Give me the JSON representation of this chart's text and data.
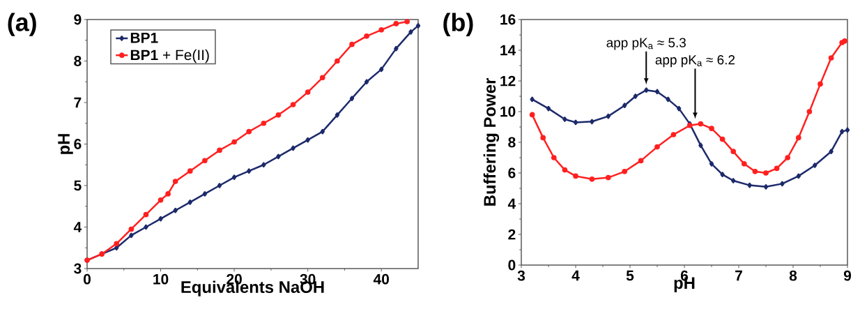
{
  "chart_data": [
    {
      "type": "line",
      "title": "(a)",
      "xlabel": "Equivalents NaOH",
      "ylabel": "pH",
      "xlim": [
        0,
        45
      ],
      "ylim": [
        3,
        9
      ],
      "xticks": [
        0,
        10,
        20,
        30,
        40
      ],
      "yticks": [
        3,
        4,
        5,
        6,
        7,
        8,
        9
      ],
      "legend": "top left",
      "series": [
        {
          "name": "**BP1**",
          "color": "#1c2a6b",
          "marker": "diamond",
          "x": [
            0,
            2,
            4,
            6,
            8,
            10,
            12,
            14,
            16,
            18,
            20,
            22,
            24,
            26,
            28,
            30,
            32,
            34,
            36,
            38,
            40,
            42,
            44,
            45
          ],
          "values": [
            3.2,
            3.35,
            3.5,
            3.8,
            4.0,
            4.2,
            4.4,
            4.6,
            4.8,
            5.0,
            5.2,
            5.35,
            5.5,
            5.7,
            5.9,
            6.1,
            6.3,
            6.7,
            7.1,
            7.5,
            7.8,
            8.3,
            8.7,
            8.85
          ]
        },
        {
          "name": "**BP1** + Fe(II)",
          "color": "#ff2020",
          "marker": "circle",
          "x": [
            0,
            2,
            4,
            6,
            8,
            10,
            11,
            12,
            14,
            16,
            18,
            20,
            22,
            24,
            26,
            28,
            30,
            32,
            34,
            36,
            38,
            40,
            42,
            43.5
          ],
          "values": [
            3.2,
            3.35,
            3.6,
            3.95,
            4.3,
            4.65,
            4.8,
            5.1,
            5.35,
            5.6,
            5.85,
            6.05,
            6.3,
            6.5,
            6.7,
            6.95,
            7.25,
            7.6,
            8.0,
            8.4,
            8.6,
            8.75,
            8.9,
            8.95
          ]
        }
      ]
    },
    {
      "type": "line",
      "title": "(b)",
      "xlabel": "pH",
      "ylabel": "Buffering Power",
      "xlim": [
        3,
        9
      ],
      "ylim": [
        0,
        16
      ],
      "xticks": [
        3,
        4,
        5,
        6,
        7,
        8,
        9
      ],
      "yticks": [
        0,
        2,
        4,
        6,
        8,
        10,
        12,
        14,
        16
      ],
      "annotations": [
        "app pK$_{a}$ ≈ 5.3",
        "app pK$_{a}$ ≈ 6.2"
      ],
      "series": [
        {
          "color": "#1c2a6b",
          "marker": "diamond",
          "x": [
            3.2,
            3.5,
            3.8,
            4.0,
            4.3,
            4.6,
            4.9,
            5.1,
            5.3,
            5.5,
            5.7,
            5.9,
            6.1,
            6.3,
            6.5,
            6.7,
            6.9,
            7.2,
            7.5,
            7.8,
            8.1,
            8.4,
            8.7,
            8.9,
            9.0
          ],
          "values": [
            10.8,
            10.2,
            9.5,
            9.3,
            9.35,
            9.7,
            10.4,
            11.0,
            11.4,
            11.3,
            10.8,
            10.2,
            9.2,
            7.8,
            6.6,
            5.9,
            5.5,
            5.2,
            5.1,
            5.3,
            5.8,
            6.5,
            7.4,
            8.7,
            8.8
          ]
        },
        {
          "color": "#ff2020",
          "marker": "circle",
          "x": [
            3.2,
            3.4,
            3.6,
            3.8,
            4.0,
            4.3,
            4.6,
            4.9,
            5.2,
            5.5,
            5.8,
            6.1,
            6.3,
            6.5,
            6.7,
            6.9,
            7.1,
            7.3,
            7.5,
            7.7,
            7.9,
            8.1,
            8.3,
            8.5,
            8.7,
            8.9,
            8.95
          ],
          "values": [
            9.8,
            8.3,
            7.0,
            6.2,
            5.8,
            5.6,
            5.7,
            6.1,
            6.8,
            7.7,
            8.5,
            9.1,
            9.2,
            8.9,
            8.2,
            7.4,
            6.6,
            6.1,
            6.0,
            6.3,
            7.0,
            8.3,
            10.0,
            11.8,
            13.5,
            14.5,
            14.6
          ]
        }
      ]
    }
  ]
}
